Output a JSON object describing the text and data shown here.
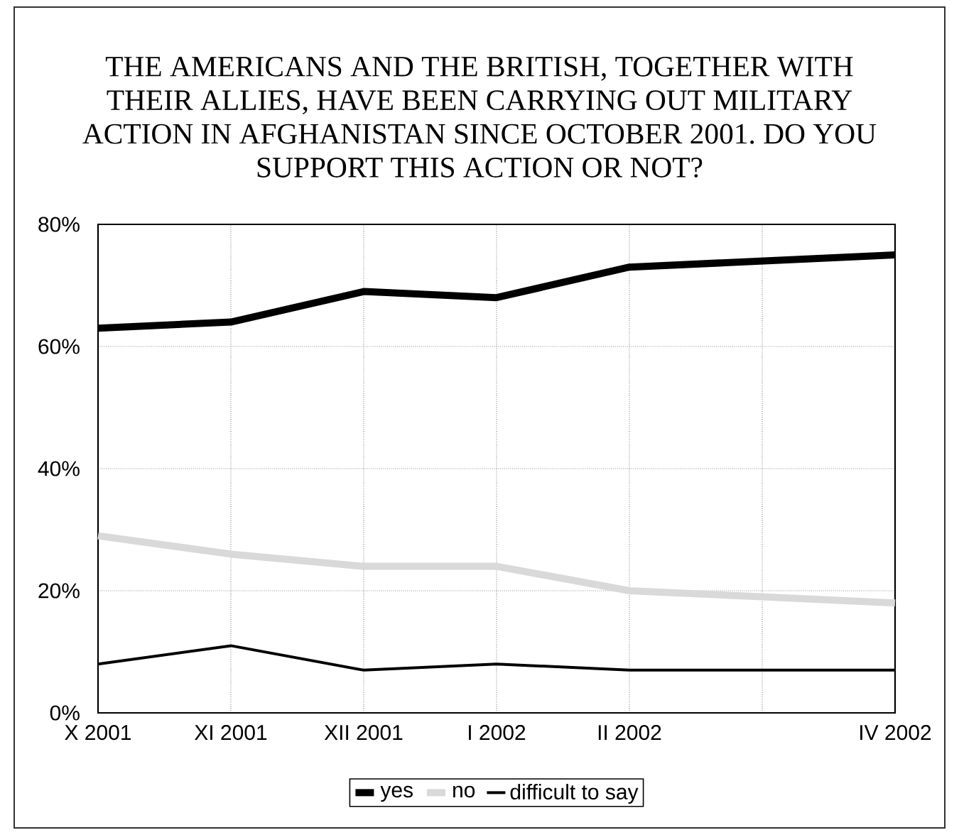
{
  "chart_data": {
    "type": "line",
    "title": "THE AMERICANS AND THE BRITISH, TOGETHER WITH THEIR ALLIES, HAVE BEEN CARRYING OUT MILITARY ACTION IN AFGHANISTAN SINCE OCTOBER 2001. DO YOU SUPPORT THIS ACTION OR NOT?",
    "categories": [
      "X 2001",
      "XI 2001",
      "XII 2001",
      "I 2002",
      "II 2002",
      null,
      "IV 2002"
    ],
    "series": [
      {
        "name": "yes",
        "color": "#000000",
        "values": [
          63,
          64,
          69,
          68,
          73,
          74,
          75
        ]
      },
      {
        "name": "no",
        "color": "#d9d9d9",
        "values": [
          29,
          26,
          24,
          24,
          20,
          19,
          18
        ]
      },
      {
        "name": "difficult to say",
        "color": "#000000",
        "values": [
          8,
          11,
          7,
          8,
          7,
          7,
          7
        ]
      }
    ],
    "ylim": [
      0,
      80
    ],
    "yticks": [
      {
        "value": 0,
        "label": "0%"
      },
      {
        "value": 20,
        "label": "20%"
      },
      {
        "value": 40,
        "label": "40%"
      },
      {
        "value": 60,
        "label": "60%"
      },
      {
        "value": 80,
        "label": "80%"
      }
    ],
    "grid": true,
    "legend": "bottom",
    "line_style": "solid"
  }
}
